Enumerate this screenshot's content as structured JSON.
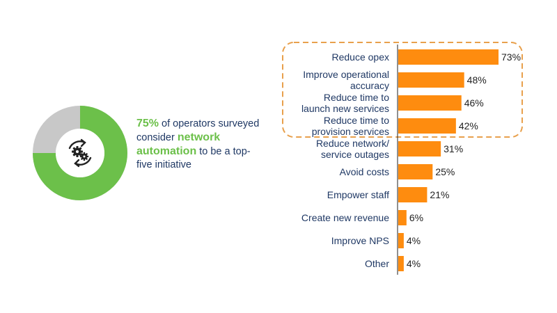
{
  "stat": {
    "percent": "75%",
    "text_a": " of operators surveyed consider ",
    "keyword": "network automation",
    "text_b": " to be a top-five initiative"
  },
  "donut": {
    "value": 0.75,
    "fill_color": "#6cc04a",
    "rest_color": "#c8c8c8",
    "icon": "gears-cycle-icon"
  },
  "chart_data": {
    "type": "bar",
    "orientation": "horizontal",
    "categories": [
      [
        "Reduce opex"
      ],
      [
        "Improve operational",
        "accuracy"
      ],
      [
        "Reduce time to",
        "launch new services"
      ],
      [
        "Reduce time to",
        "provision services"
      ],
      [
        "Reduce network/",
        "service outages"
      ],
      [
        "Avoid costs"
      ],
      [
        "Empower staff"
      ],
      [
        "Create new revenue"
      ],
      [
        "Improve NPS"
      ],
      [
        "Other"
      ]
    ],
    "values": [
      73,
      48,
      46,
      42,
      31,
      25,
      21,
      6,
      4,
      4
    ],
    "value_labels": [
      "73%",
      "48%",
      "46%",
      "42%",
      "31%",
      "25%",
      "21%",
      "6%",
      "4%",
      "4%"
    ],
    "xlim": [
      0,
      73
    ],
    "bar_color": "#fe8c0f",
    "highlight_color": "#e8a04c",
    "highlighted_categories": [
      0,
      1,
      2,
      3
    ],
    "grid": false
  }
}
